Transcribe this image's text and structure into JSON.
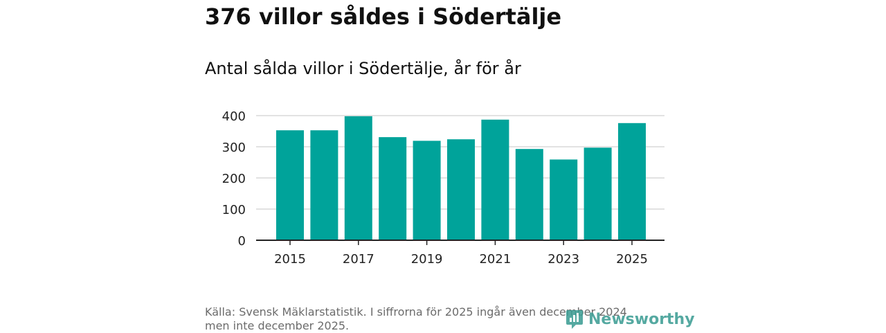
{
  "title": "376 villor såldes i Södertälje",
  "subtitle": "Antal sålda villor i Södertälje, år för år",
  "source": {
    "line1": "Källa: Svensk Mäklarstatistik. I siffrorna för 2025 ingår även december 2024",
    "line2": "men inte december 2025."
  },
  "logo": {
    "text": "Newsworthy",
    "icon": "newsworthy-logo-icon",
    "color": "#3e9e95"
  },
  "colors": {
    "bar": "#00a39a",
    "grid": "#d9d9d9",
    "axis": "#222222"
  },
  "chart_data": {
    "type": "bar",
    "title": "Antal sålda villor i Södertälje, år för år",
    "categories": [
      "2015",
      "2016",
      "2017",
      "2018",
      "2019",
      "2020",
      "2021",
      "2022",
      "2023",
      "2024",
      "2025"
    ],
    "values": [
      353,
      353,
      398,
      331,
      319,
      324,
      387,
      293,
      259,
      297,
      376
    ],
    "x_tick_labels": [
      "2015",
      "2017",
      "2019",
      "2021",
      "2023",
      "2025"
    ],
    "y_ticks": [
      0,
      100,
      200,
      300,
      400
    ],
    "ylim": [
      0,
      400
    ],
    "xlabel": "",
    "ylabel": "",
    "grid": true
  }
}
